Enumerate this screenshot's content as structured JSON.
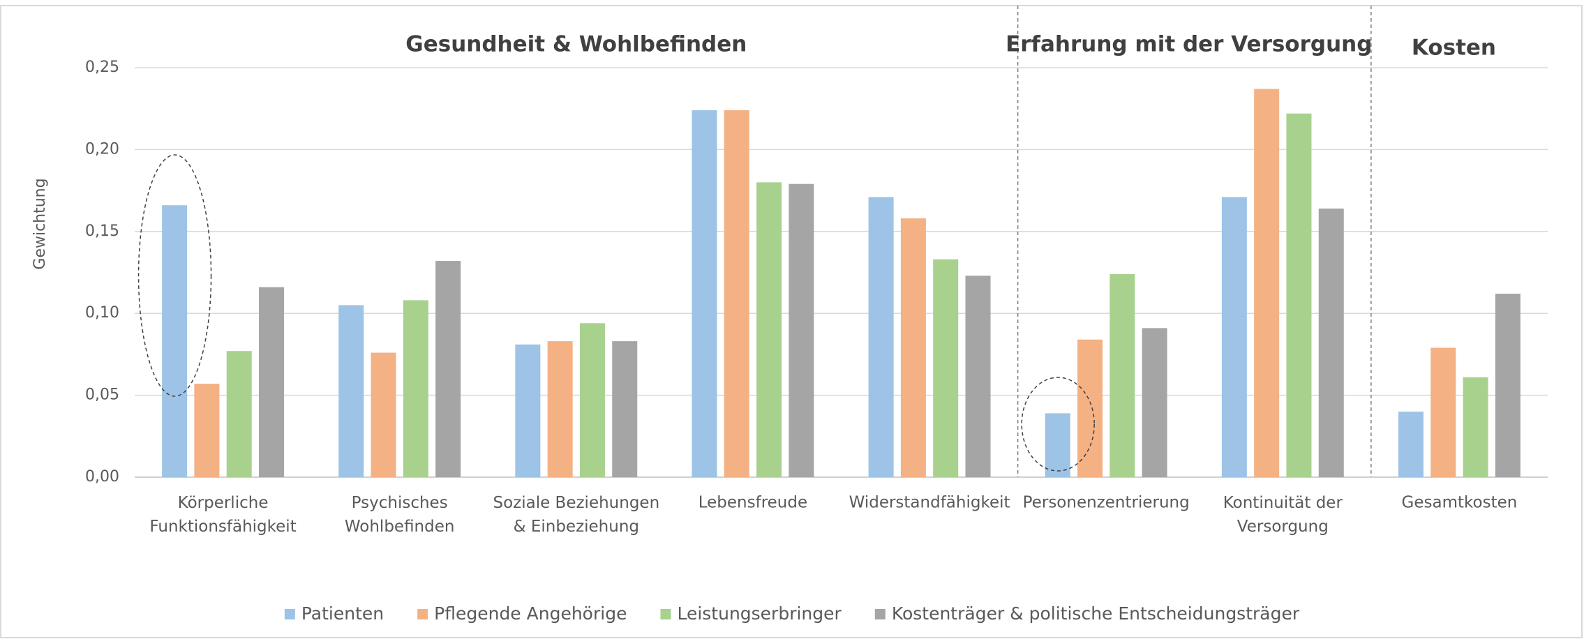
{
  "chart_data": {
    "type": "bar",
    "y_label": "Gewichtung",
    "sections": [
      "Gesundheit & Wohlbefinden",
      "Erfahrung mit der Versorgung",
      "Kosten"
    ],
    "categories": [
      "Körperliche\nFunktionsfähigkeit",
      "Psychisches\nWohlbefinden",
      "Soziale Beziehungen\n& Einbeziehung",
      "Lebensfreude",
      "Widerstandfähigkeit",
      "Personenzentrierung",
      "Kontinuität der\nVersorgung",
      "Gesamtkosten"
    ],
    "series": [
      {
        "name": "Patienten",
        "color": "#9dc3e6",
        "values": [
          0.166,
          0.105,
          0.081,
          0.224,
          0.171,
          0.039,
          0.171,
          0.04
        ]
      },
      {
        "name": "Pflegende Angehörige",
        "color": "#f4b183",
        "values": [
          0.057,
          0.076,
          0.083,
          0.224,
          0.158,
          0.084,
          0.237,
          0.079
        ]
      },
      {
        "name": "Leistungserbringer",
        "color": "#a9d18e",
        "values": [
          0.077,
          0.108,
          0.094,
          0.18,
          0.133,
          0.124,
          0.222,
          0.061
        ]
      },
      {
        "name": "Kostenträger & politische Entscheidungsträger",
        "color": "#a5a5a5",
        "values": [
          0.116,
          0.132,
          0.083,
          0.179,
          0.123,
          0.091,
          0.164,
          0.112
        ]
      }
    ],
    "ylim": [
      0,
      0.25
    ],
    "yticks": [
      {
        "value": 0,
        "label": "0,00"
      },
      {
        "value": 0.05,
        "label": "0,05"
      },
      {
        "value": 0.1,
        "label": "0,10"
      },
      {
        "value": 0.15,
        "label": "0,15"
      },
      {
        "value": 0.2,
        "label": "0,20"
      },
      {
        "value": 0.25,
        "label": "0,25"
      }
    ],
    "grid": true,
    "legend": "bottom"
  }
}
